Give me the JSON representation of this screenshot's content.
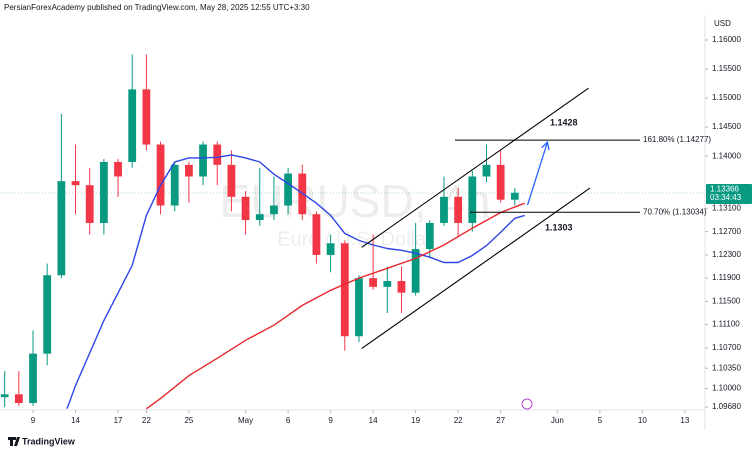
{
  "chart_data": {
    "type": "candlestick",
    "header": "PersianForexAcademy published on TradingView.com, May 28, 2025 12:55 UTC+3:30",
    "currency": "USD",
    "watermark": "EURUSD, 4h",
    "watermark_sub": "Euro / U.S. Dollar",
    "footer": "TradingView",
    "up_color": "#089981",
    "down_color": "#f23645",
    "x": [
      -2,
      -1,
      0,
      1,
      2,
      3,
      4,
      5,
      6,
      7,
      8,
      9,
      10,
      11,
      12,
      13,
      14,
      15,
      16,
      17,
      18,
      19,
      20,
      21,
      22,
      23,
      24,
      25,
      26,
      27,
      28,
      29,
      30,
      31,
      32,
      33,
      34
    ],
    "open": [
      1.0985,
      1.099,
      1.0975,
      1.106,
      1.1195,
      1.1357,
      1.135,
      1.1285,
      1.139,
      1.139,
      1.1515,
      1.142,
      1.1315,
      1.1385,
      1.1365,
      1.142,
      1.1385,
      1.133,
      1.129,
      1.13,
      1.1315,
      1.137,
      1.13,
      1.123,
      1.125,
      1.109,
      1.119,
      1.1175,
      1.1185,
      1.1165,
      1.124,
      1.1285,
      1.133,
      1.1285,
      1.1365,
      1.1385,
      1.1325
    ],
    "high": [
      1.103,
      1.103,
      1.11,
      1.1215,
      1.1473,
      1.142,
      1.138,
      1.1395,
      1.1395,
      1.1575,
      1.1575,
      1.1425,
      1.139,
      1.139,
      1.1425,
      1.1425,
      1.141,
      1.134,
      1.138,
      1.1365,
      1.138,
      1.1385,
      1.1305,
      1.1265,
      1.1255,
      1.1195,
      1.1265,
      1.121,
      1.121,
      1.1285,
      1.129,
      1.1365,
      1.1345,
      1.1375,
      1.142,
      1.141,
      1.1345
    ],
    "low": [
      1.0968,
      1.097,
      1.097,
      1.104,
      1.119,
      1.13,
      1.1265,
      1.1265,
      1.133,
      1.138,
      1.141,
      1.13,
      1.1305,
      1.132,
      1.135,
      1.135,
      1.1305,
      1.1265,
      1.128,
      1.129,
      1.13,
      1.129,
      1.1215,
      1.12,
      1.1065,
      1.108,
      1.117,
      1.113,
      1.113,
      1.116,
      1.1225,
      1.128,
      1.126,
      1.127,
      1.1355,
      1.132,
      1.1315
    ],
    "close": [
      1.099,
      1.0975,
      1.106,
      1.1195,
      1.1357,
      1.135,
      1.1285,
      1.139,
      1.1365,
      1.1515,
      1.142,
      1.1315,
      1.1385,
      1.1365,
      1.142,
      1.1385,
      1.133,
      1.129,
      1.13,
      1.1315,
      1.137,
      1.13,
      1.123,
      1.125,
      1.109,
      1.119,
      1.1175,
      1.1185,
      1.1165,
      1.124,
      1.1285,
      1.133,
      1.1285,
      1.1365,
      1.1385,
      1.1325,
      1.1337
    ],
    "lines": [
      {
        "color": "#2f45e6",
        "x": [
          2.4,
          3,
          5,
          7,
          8,
          9,
          10,
          11,
          12,
          13,
          14,
          15,
          16,
          17,
          18,
          19,
          20,
          21,
          22,
          23,
          24,
          25,
          26,
          27,
          28,
          29,
          30,
          31,
          32,
          33,
          34,
          34.7
        ],
        "values": [
          1.0965,
          1.1005,
          1.1117,
          1.1212,
          1.1298,
          1.135,
          1.139,
          1.1397,
          1.1397,
          1.1398,
          1.1402,
          1.1397,
          1.139,
          1.1369,
          1.1353,
          1.1336,
          1.1319,
          1.1298,
          1.1267,
          1.1255,
          1.1247,
          1.1241,
          1.1238,
          1.1233,
          1.1226,
          1.1217,
          1.1217,
          1.1229,
          1.1246,
          1.1269,
          1.1293,
          1.1298
        ]
      },
      {
        "color": "#e8262b",
        "x": [
          8,
          9,
          11,
          13,
          15,
          17,
          19,
          21,
          23,
          25,
          27,
          29,
          31,
          33,
          34.7
        ],
        "values": [
          1.0965,
          1.0983,
          1.1022,
          1.1052,
          1.1083,
          1.1109,
          1.1143,
          1.1169,
          1.119,
          1.1207,
          1.1224,
          1.1247,
          1.1276,
          1.1303,
          1.1319
        ]
      }
    ],
    "trendlines": [
      {
        "x": [
          23.2,
          39.2
        ],
        "y": [
          1.1243,
          1.1517
        ]
      },
      {
        "x": [
          23.2,
          39.3
        ],
        "y": [
          1.1069,
          1.1345
        ]
      }
    ],
    "arrow": {
      "x": [
        34.9,
        36.3
      ],
      "y": [
        1.1316,
        1.1424
      ],
      "color": "#2962ff"
    },
    "levels": [
      {
        "value": 1.14277,
        "label": "161.80% (1.14277)",
        "tag": 1.1428
      },
      {
        "value": 1.13034,
        "label": "70.70% (1.13034)",
        "tag": 1.1303
      }
    ],
    "last_price": 1.13366,
    "countdown": "03:34:43",
    "xlim": [
      -2.33,
      47.42
    ],
    "ylim": [
      1.0963,
      1.1643
    ],
    "xticks": [
      {
        "value": 0,
        "label": "9"
      },
      {
        "value": 3,
        "label": "14"
      },
      {
        "value": 6,
        "label": "17"
      },
      {
        "value": 8,
        "label": "22"
      },
      {
        "value": 11,
        "label": "25"
      },
      {
        "value": 15,
        "label": "May"
      },
      {
        "value": 18,
        "label": "6"
      },
      {
        "value": 21,
        "label": "9"
      },
      {
        "value": 24,
        "label": "14"
      },
      {
        "value": 27,
        "label": "19"
      },
      {
        "value": 30,
        "label": "22"
      },
      {
        "value": 33,
        "label": "27"
      },
      {
        "value": 37,
        "label": "Jun"
      },
      {
        "value": 40,
        "label": "5"
      },
      {
        "value": 43,
        "label": "10"
      },
      {
        "value": 46,
        "label": "13"
      }
    ],
    "yticks": [
      {
        "value": 1.16,
        "label": "1.16000"
      },
      {
        "value": 1.155,
        "label": "1.15500"
      },
      {
        "value": 1.15,
        "label": "1.15000"
      },
      {
        "value": 1.145,
        "label": "1.14500"
      },
      {
        "value": 1.14,
        "label": "1.14000"
      },
      {
        "value": 1.131,
        "label": "1.13100"
      },
      {
        "value": 1.127,
        "label": "1.12700"
      },
      {
        "value": 1.123,
        "label": "1.12300"
      },
      {
        "value": 1.119,
        "label": "1.11900"
      },
      {
        "value": 1.115,
        "label": "1.11500"
      },
      {
        "value": 1.111,
        "label": "1.11100"
      },
      {
        "value": 1.107,
        "label": "1.10700"
      },
      {
        "value": 1.1035,
        "label": "1.10350"
      },
      {
        "value": 1.1,
        "label": "1.10000"
      },
      {
        "value": 1.0968,
        "label": "1.09680"
      }
    ]
  }
}
